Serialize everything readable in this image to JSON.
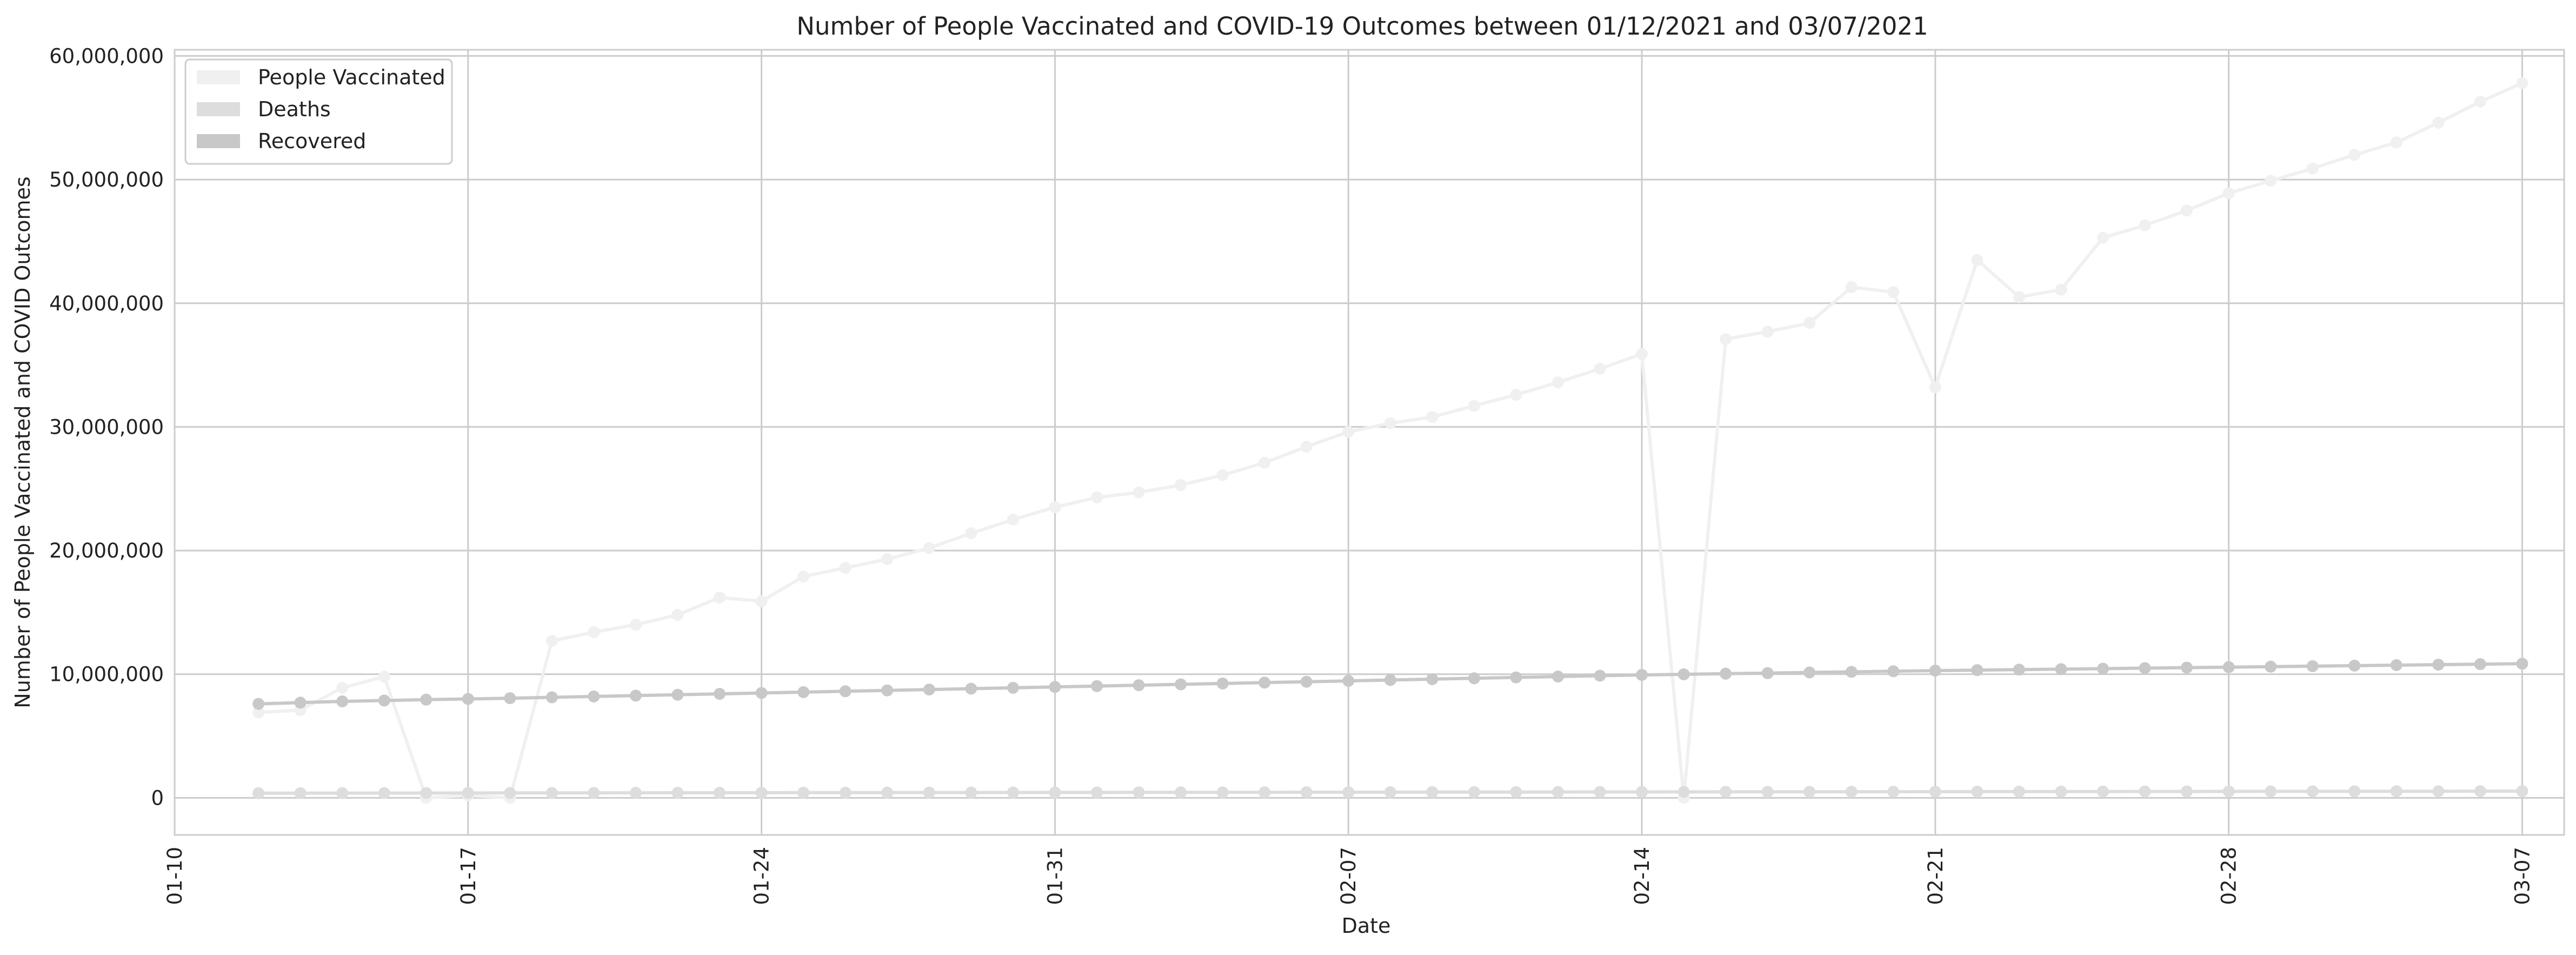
{
  "chart_data": {
    "type": "line",
    "title": "Number of People Vaccinated and COVID-19 Outcomes between 01/12/2021 and 03/07/2021",
    "xlabel": "Date",
    "ylabel": "Number of People Vaccinated and COVID Outcomes",
    "x_start": "2021-01-12",
    "xlim": [
      "2021-01-10",
      "2021-03-08"
    ],
    "ylim": [
      -3000000,
      60500000
    ],
    "xticks": [
      {
        "date": "2021-01-10",
        "label": "01-10"
      },
      {
        "date": "2021-01-17",
        "label": "01-17"
      },
      {
        "date": "2021-01-24",
        "label": "01-24"
      },
      {
        "date": "2021-01-31",
        "label": "01-31"
      },
      {
        "date": "2021-02-07",
        "label": "02-07"
      },
      {
        "date": "2021-02-14",
        "label": "02-14"
      },
      {
        "date": "2021-02-21",
        "label": "02-21"
      },
      {
        "date": "2021-02-28",
        "label": "02-28"
      },
      {
        "date": "2021-03-07",
        "label": "03-07"
      }
    ],
    "yticks": [
      {
        "value": 0,
        "label": "0"
      },
      {
        "value": 10000000,
        "label": "10,000,000"
      },
      {
        "value": 20000000,
        "label": "20,000,000"
      },
      {
        "value": 30000000,
        "label": "30,000,000"
      },
      {
        "value": 40000000,
        "label": "40,000,000"
      },
      {
        "value": 50000000,
        "label": "50,000,000"
      },
      {
        "value": 60000000,
        "label": "60,000,000"
      }
    ],
    "grid": true,
    "legend_position": "top-left",
    "series": [
      {
        "name": "People Vaccinated",
        "color": "#f0f0f0",
        "values": [
          6900000,
          7100000,
          8900000,
          9800000,
          0,
          200000,
          0,
          12700000,
          13400000,
          14000000,
          14800000,
          16200000,
          15900000,
          17900000,
          18600000,
          19300000,
          20200000,
          21400000,
          22500000,
          23500000,
          24300000,
          24700000,
          25300000,
          26100000,
          27100000,
          28400000,
          29600000,
          30300000,
          30800000,
          31700000,
          32600000,
          33600000,
          34700000,
          35900000,
          0,
          37100000,
          37700000,
          38400000,
          41300000,
          40900000,
          33200000,
          43500000,
          40500000,
          41100000,
          45300000,
          46300000,
          47500000,
          48900000,
          49900000,
          50900000,
          52000000,
          53000000,
          54600000,
          56300000,
          57800000
        ]
      },
      {
        "name": "Deaths",
        "color": "#dddddd",
        "values": [
          380000,
          382000,
          385000,
          388000,
          391000,
          394000,
          397000,
          400000,
          403000,
          406000,
          409000,
          412000,
          415000,
          418000,
          421000,
          424000,
          427000,
          430000,
          433000,
          436000,
          439000,
          442000,
          445000,
          448000,
          451000,
          454000,
          457000,
          460000,
          463000,
          466000,
          469000,
          472000,
          475000,
          478000,
          481000,
          484000,
          487000,
          490000,
          493000,
          496000,
          499000,
          502000,
          505000,
          508000,
          511000,
          514000,
          517000,
          520000,
          523000,
          526000,
          529000,
          532000,
          535000,
          538000,
          541000
        ]
      },
      {
        "name": "Recovered",
        "color": "#c8c8c8",
        "values": [
          7600000,
          7700000,
          7800000,
          7870000,
          7940000,
          8000000,
          8060000,
          8130000,
          8200000,
          8270000,
          8340000,
          8410000,
          8480000,
          8550000,
          8620000,
          8690000,
          8760000,
          8830000,
          8900000,
          8970000,
          9040000,
          9110000,
          9180000,
          9250000,
          9320000,
          9390000,
          9460000,
          9530000,
          9600000,
          9670000,
          9740000,
          9810000,
          9880000,
          9940000,
          9990000,
          10040000,
          10090000,
          10140000,
          10190000,
          10240000,
          10290000,
          10330000,
          10370000,
          10410000,
          10450000,
          10490000,
          10530000,
          10570000,
          10610000,
          10650000,
          10690000,
          10730000,
          10770000,
          10810000,
          10850000
        ]
      }
    ]
  }
}
